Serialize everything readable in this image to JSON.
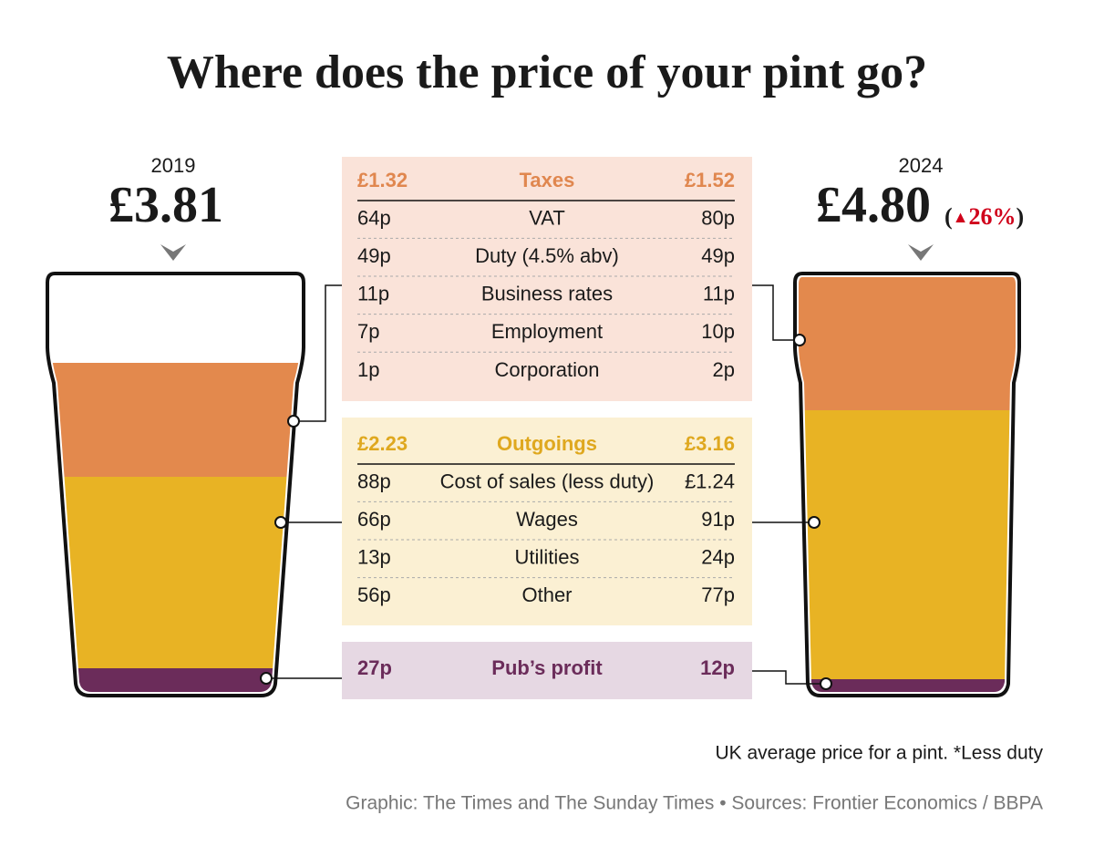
{
  "title": "Where does the price of your pint go?",
  "left": {
    "year": "2019",
    "price": "£3.81"
  },
  "right": {
    "year": "2024",
    "price": "£4.80",
    "change": {
      "open": "(",
      "arrow": "▲",
      "value": "26%",
      "close": ")"
    }
  },
  "sections": [
    {
      "header": [
        "£1.32",
        "Taxes",
        "£1.52"
      ],
      "rows": [
        [
          "64p",
          "VAT",
          "80p"
        ],
        [
          "49p",
          "Duty (4.5% abv)",
          "49p"
        ],
        [
          "11p",
          "Business rates",
          "11p"
        ],
        [
          "7p",
          "Employment",
          "10p"
        ],
        [
          "1p",
          "Corporation",
          "2p"
        ]
      ]
    },
    {
      "header": [
        "£2.23",
        "Outgoings",
        "£3.16"
      ],
      "rows": [
        [
          "88p",
          "Cost of sales (less duty)",
          "£1.24"
        ],
        [
          "66p",
          "Wages",
          "91p"
        ],
        [
          "13p",
          "Utilities",
          "24p"
        ],
        [
          "56p",
          "Other",
          "77p"
        ]
      ]
    },
    {
      "header": [
        "27p",
        "Pub’s profit",
        "12p"
      ],
      "rows": []
    }
  ],
  "note": "UK average price for a pint. *Less duty",
  "credit": "Graphic: The Times and The Sunday Times • Sources: Frontier Economics / BBPA"
}
